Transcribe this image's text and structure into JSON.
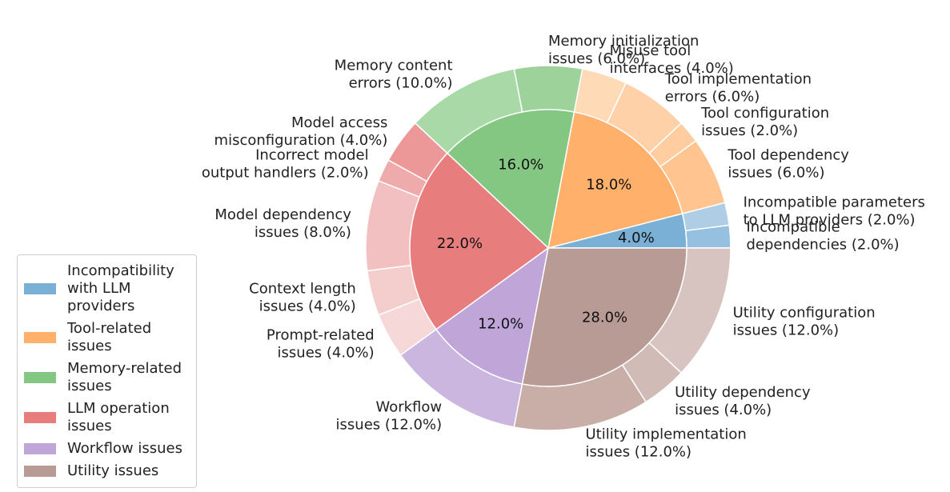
{
  "chart_data": {
    "type": "pie",
    "subtype": "nested-donut",
    "inner": [
      {
        "name": "Incompatibility with LLM providers",
        "value": 4.0,
        "label": "4.0%",
        "color": "#7aafd6"
      },
      {
        "name": "Tool-related issues",
        "value": 18.0,
        "label": "18.0%",
        "color": "#ffb06b"
      },
      {
        "name": "Memory-related issues",
        "value": 16.0,
        "label": "16.0%",
        "color": "#83c783"
      },
      {
        "name": "LLM operation issues",
        "value": 22.0,
        "label": "22.0%",
        "color": "#e87d7e"
      },
      {
        "name": "Workflow issues",
        "value": 12.0,
        "label": "12.0%",
        "color": "#bfa5d8"
      },
      {
        "name": "Utility issues",
        "value": 28.0,
        "label": "28.0%",
        "color": "#b89b94"
      }
    ],
    "outer": [
      {
        "name": "Incompatible dependencies (2.0%)",
        "lines": [
          "Incompatible",
          "dependencies (2.0%)"
        ],
        "value": 2.0,
        "parent": 0,
        "color": "#95c0df"
      },
      {
        "name": "Incompatible parameters to LLM providers (2.0%)",
        "lines": [
          "Incompatible parameters",
          "to LLM providers (2.0%)"
        ],
        "value": 2.0,
        "parent": 0,
        "color": "#afcde5"
      },
      {
        "name": "Tool dependency issues (6.0%)",
        "lines": [
          "Tool dependency",
          "issues (6.0%)"
        ],
        "value": 6.0,
        "parent": 1,
        "color": "#ffc48f"
      },
      {
        "name": "Tool configuration issues (2.0%)",
        "lines": [
          "Tool configuration",
          "issues (2.0%)"
        ],
        "value": 2.0,
        "parent": 1,
        "color": "#ffcd9f"
      },
      {
        "name": "Tool implementation errors (6.0%)",
        "lines": [
          "Tool implementation",
          "errors (6.0%)"
        ],
        "value": 6.0,
        "parent": 1,
        "color": "#ffd1a8"
      },
      {
        "name": "Misuse tool interfaces (4.0%)",
        "lines": [
          "Misuse tool",
          "interfaces (4.0%)"
        ],
        "value": 4.0,
        "parent": 1,
        "color": "#ffdab7"
      },
      {
        "name": "Memory initialization issues (6.0%)",
        "lines": [
          "Memory initialization",
          "issues (6.0%)"
        ],
        "value": 6.0,
        "parent": 2,
        "color": "#9dd29b"
      },
      {
        "name": "Memory content errors (10.0%)",
        "lines": [
          "Memory content",
          "errors (10.0%)"
        ],
        "value": 10.0,
        "parent": 2,
        "color": "#a9d9a6"
      },
      {
        "name": "Model access misconfiguration (4.0%)",
        "lines": [
          "Model access",
          "misconfiguration (4.0%)"
        ],
        "value": 4.0,
        "parent": 3,
        "color": "#ec9899"
      },
      {
        "name": "Incorrect model output handlers (2.0%)",
        "lines": [
          "Incorrect model",
          "output handlers (2.0%)"
        ],
        "value": 2.0,
        "parent": 3,
        "color": "#efaaab"
      },
      {
        "name": "Model dependency issues (8.0%)",
        "lines": [
          "Model dependency",
          "issues (8.0%)"
        ],
        "value": 8.0,
        "parent": 3,
        "color": "#f2c0c0"
      },
      {
        "name": "Context length issues (4.0%)",
        "lines": [
          "Context length",
          "issues (4.0%)"
        ],
        "value": 4.0,
        "parent": 3,
        "color": "#f4cdcd"
      },
      {
        "name": "Prompt-related issues (4.0%)",
        "lines": [
          "Prompt-related",
          "issues (4.0%)"
        ],
        "value": 4.0,
        "parent": 3,
        "color": "#f7d8d9"
      },
      {
        "name": "Workflow issues (12.0%)",
        "lines": [
          "Workflow",
          "issues (12.0%)"
        ],
        "value": 12.0,
        "parent": 4,
        "color": "#cbb6e0"
      },
      {
        "name": "Utility implementation issues (12.0%)",
        "lines": [
          "Utility implementation",
          "issues (12.0%)"
        ],
        "value": 12.0,
        "parent": 5,
        "color": "#c9aea8"
      },
      {
        "name": "Utility dependency issues (4.0%)",
        "lines": [
          "Utility dependency",
          "issues (4.0%)"
        ],
        "value": 4.0,
        "parent": 5,
        "color": "#d1bbb6"
      },
      {
        "name": "Utility configuration issues (12.0%)",
        "lines": [
          "Utility configuration",
          "issues (12.0%)"
        ],
        "value": 12.0,
        "parent": 5,
        "color": "#d7c4c0"
      }
    ],
    "start_angle_deg": 0,
    "direction": "counterclockwise",
    "legend": {
      "position": "lower-left",
      "entries": [
        {
          "label": "Incompatibility with LLM providers",
          "color": "#7aafd6"
        },
        {
          "label": "Tool-related issues",
          "color": "#ffb06b"
        },
        {
          "label": "Memory-related issues",
          "color": "#83c783"
        },
        {
          "label": "LLM operation issues",
          "color": "#e87d7e"
        },
        {
          "label": "Workflow issues",
          "color": "#bfa5d8"
        },
        {
          "label": "Utility issues",
          "color": "#b89b94"
        }
      ]
    }
  }
}
